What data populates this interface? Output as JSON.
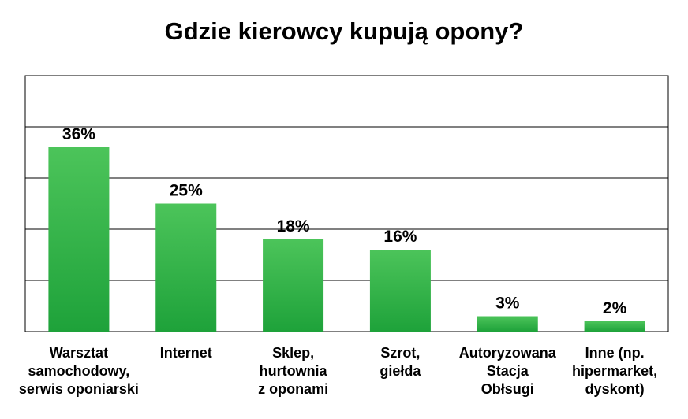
{
  "chart_data": {
    "type": "bar",
    "title": "Gdzie kierowcy kupują opony?",
    "xlabel": "",
    "ylabel": "",
    "categories": [
      "Warsztat\nsamochodowy,\nserwis oponiarski",
      "Internet",
      "Sklep,\nhurtownia\nz oponami",
      "Szrot,\ngiełda",
      "Autoryzowana\nStacja\nObłsugi",
      "Inne (np.\nhipermarket,\ndyskont)"
    ],
    "values": [
      36,
      25,
      18,
      16,
      3,
      2
    ],
    "data_labels": [
      "36%",
      "25%",
      "18%",
      "16%",
      "3%",
      "2%"
    ],
    "ylim": [
      0,
      50
    ],
    "grid": true,
    "legend": "none",
    "colors": {
      "bar_light": "#4cc45a",
      "bar_dark": "#1ea23a",
      "grid": "#000000"
    }
  }
}
